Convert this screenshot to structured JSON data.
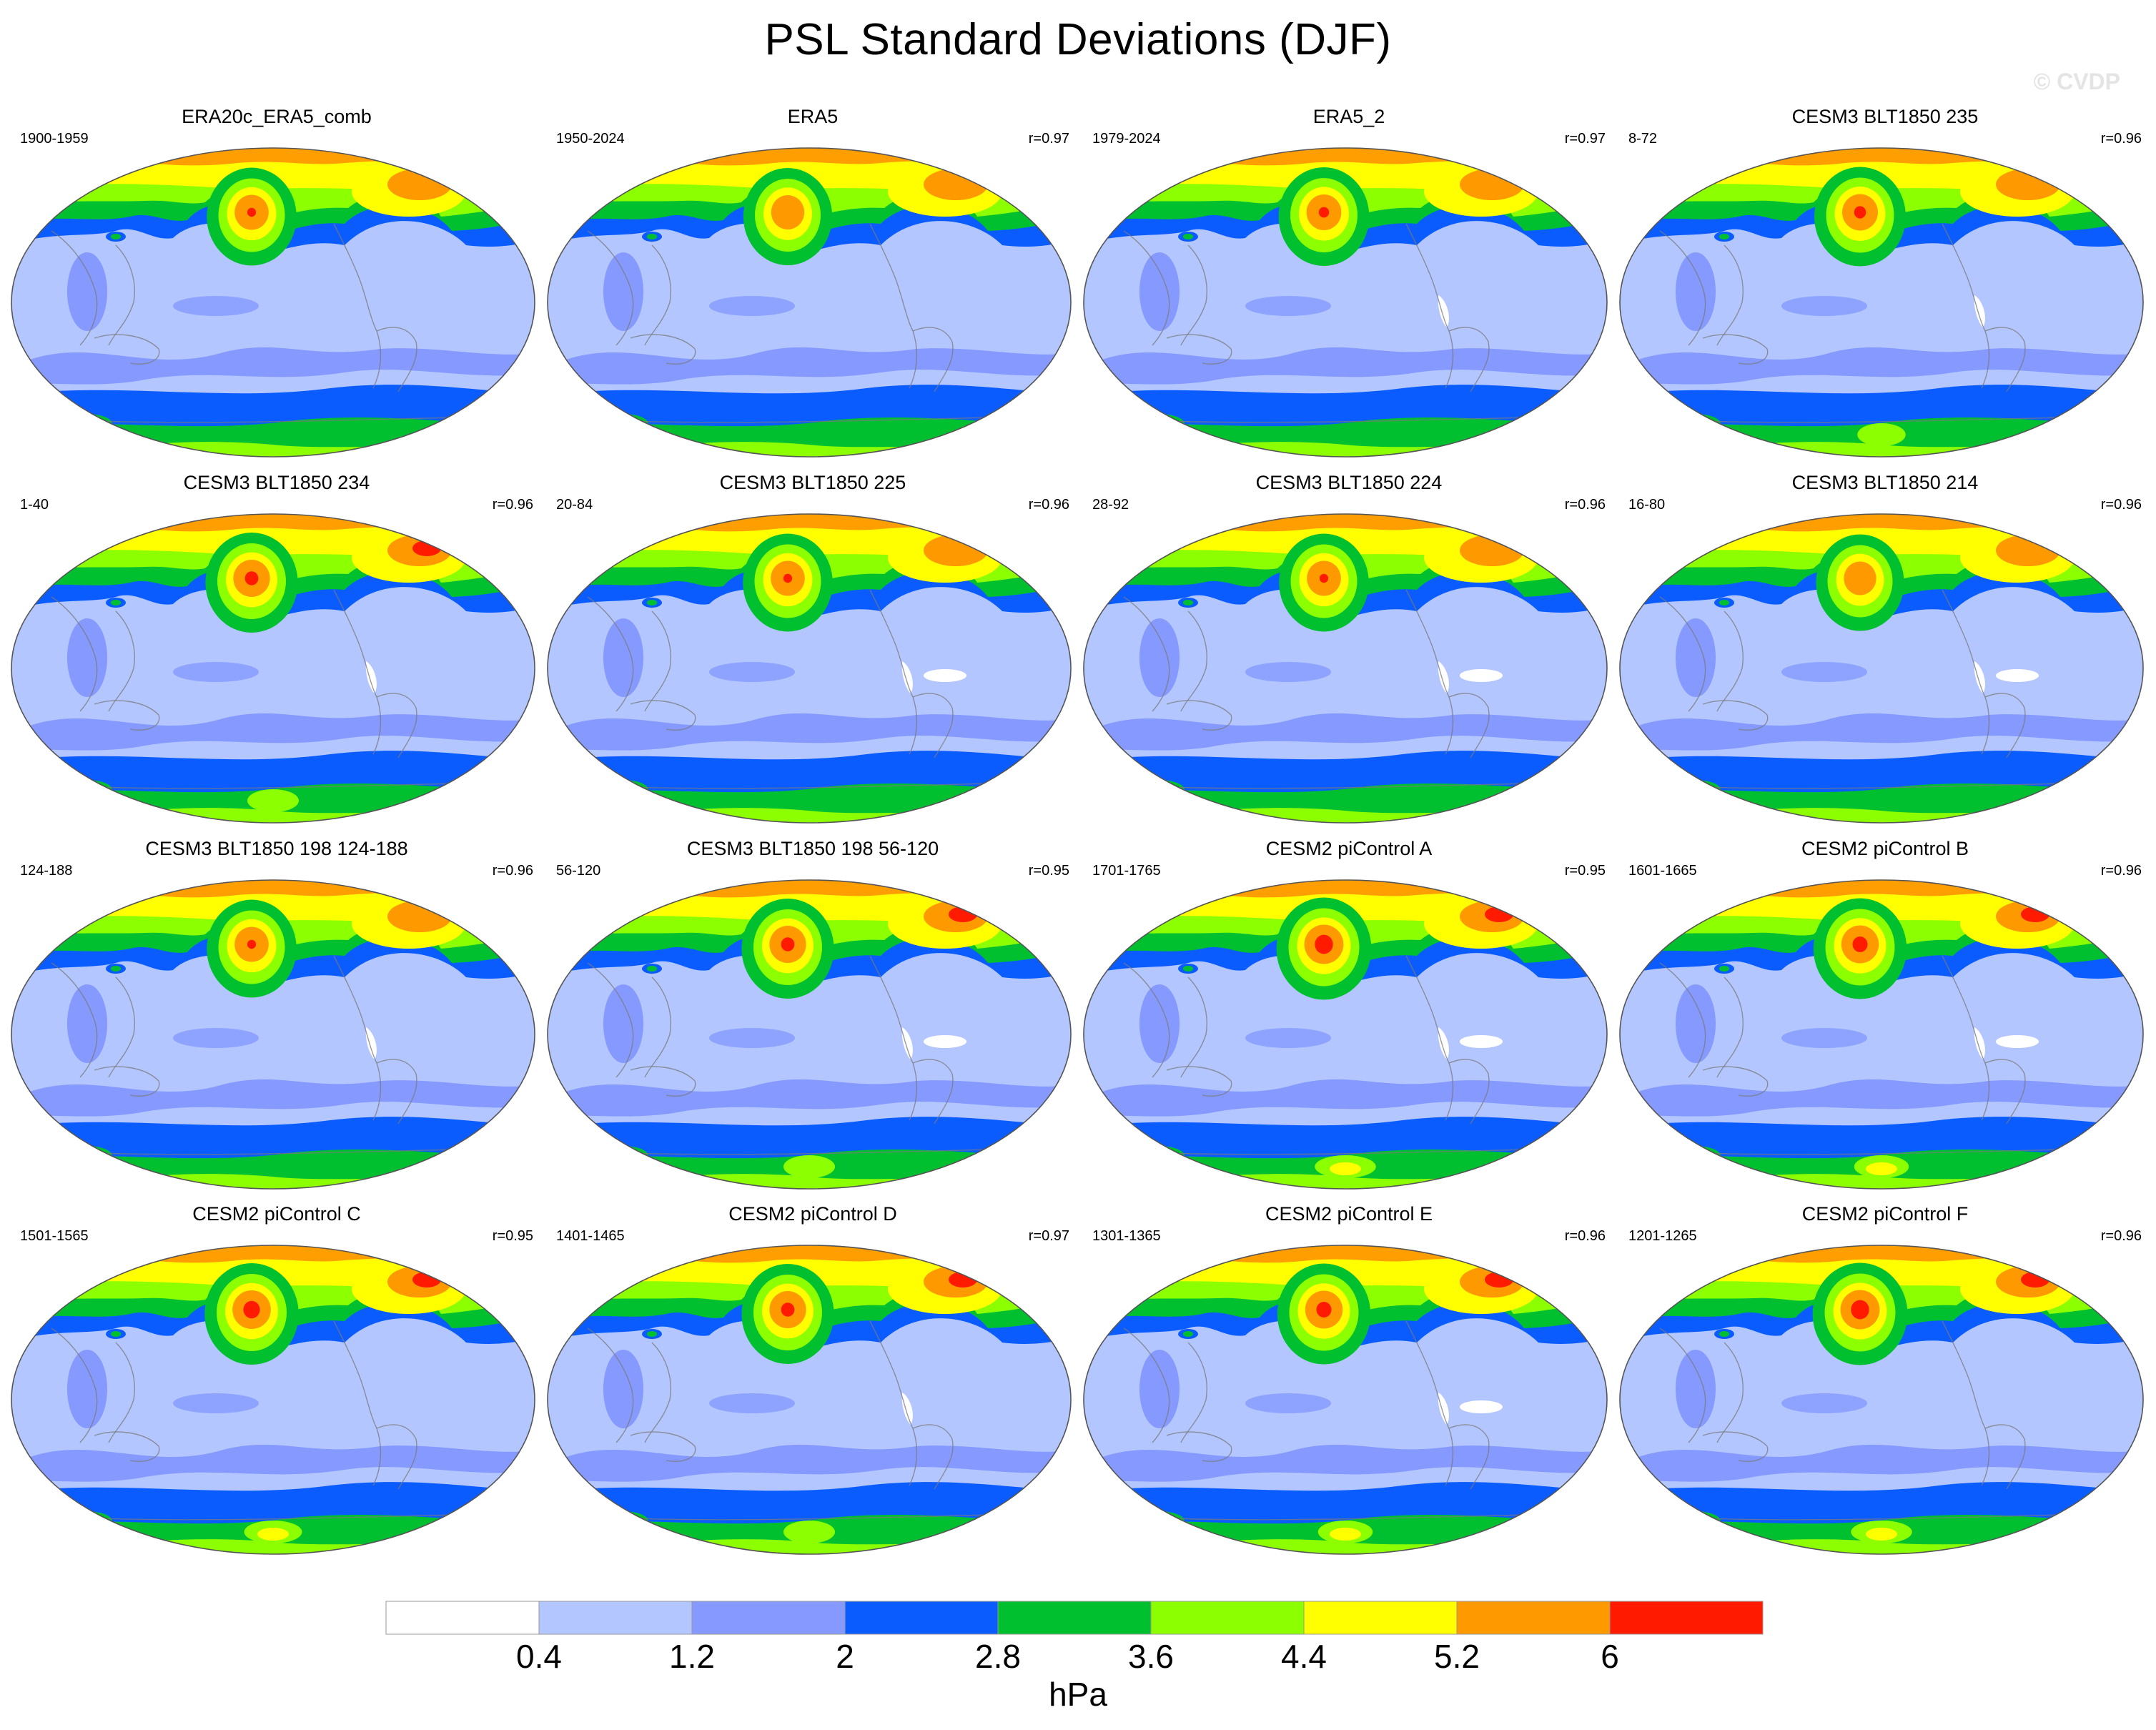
{
  "title": "PSL Standard Deviations (DJF)",
  "watermark": "© CVDP",
  "panels": [
    {
      "title": "ERA20c_ERA5_comb",
      "years": "1900-1959",
      "corr": "",
      "intensity": 0.65,
      "white_patches": 0
    },
    {
      "title": "ERA5",
      "years": "1950-2024",
      "corr": "r=0.97",
      "intensity": 0.6,
      "white_patches": 0
    },
    {
      "title": "ERA5_2",
      "years": "1979-2024",
      "corr": "r=0.97",
      "intensity": 0.7,
      "white_patches": 1
    },
    {
      "title": "CESM3 BLT1850 235",
      "years": "8-72",
      "corr": "r=0.96",
      "intensity": 0.75,
      "white_patches": 1
    },
    {
      "title": "CESM3 BLT1850 234",
      "years": "1-40",
      "corr": "r=0.96",
      "intensity": 0.8,
      "white_patches": 1
    },
    {
      "title": "CESM3 BLT1850 225",
      "years": "20-84",
      "corr": "r=0.96",
      "intensity": 0.65,
      "white_patches": 2
    },
    {
      "title": "CESM3 BLT1850 224",
      "years": "28-92",
      "corr": "r=0.96",
      "intensity": 0.65,
      "white_patches": 2
    },
    {
      "title": "CESM3 BLT1850 214",
      "years": "16-80",
      "corr": "r=0.96",
      "intensity": 0.55,
      "white_patches": 2
    },
    {
      "title": "CESM3 BLT1850 198 124-188",
      "years": "124-188",
      "corr": "r=0.96",
      "intensity": 0.65,
      "white_patches": 1
    },
    {
      "title": "CESM3 BLT1850 198 56-120",
      "years": "56-120",
      "corr": "r=0.95",
      "intensity": 0.8,
      "white_patches": 2
    },
    {
      "title": "CESM2 piControl A",
      "years": "1701-1765",
      "corr": "r=0.95",
      "intensity": 0.95,
      "white_patches": 2
    },
    {
      "title": "CESM2 piControl B",
      "years": "1601-1665",
      "corr": "r=0.96",
      "intensity": 0.85,
      "white_patches": 2
    },
    {
      "title": "CESM2 piControl C",
      "years": "1501-1565",
      "corr": "r=0.95",
      "intensity": 0.9,
      "white_patches": 0
    },
    {
      "title": "CESM2 piControl D",
      "years": "1401-1465",
      "corr": "r=0.97",
      "intensity": 0.8,
      "white_patches": 1
    },
    {
      "title": "CESM2 piControl E",
      "years": "1301-1365",
      "corr": "r=0.96",
      "intensity": 0.85,
      "white_patches": 2
    },
    {
      "title": "CESM2 piControl F",
      "years": "1201-1265",
      "corr": "r=0.96",
      "intensity": 0.95,
      "white_patches": 0
    }
  ],
  "colorbar": {
    "units": "hPa",
    "labels": [
      "0.4",
      "1.2",
      "2",
      "2.8",
      "3.6",
      "4.4",
      "5.2",
      "6"
    ],
    "colors": [
      "#ffffff",
      "#b3c6ff",
      "#8599ff",
      "#0a5cff",
      "#00c030",
      "#8cff00",
      "#ffff00",
      "#ff9900",
      "#ff1a00"
    ]
  }
}
